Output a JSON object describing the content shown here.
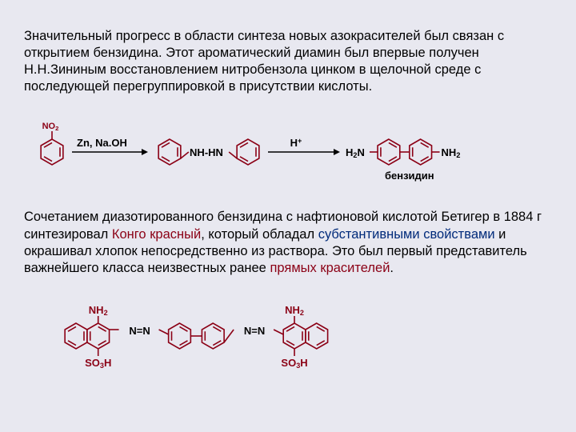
{
  "paragraph1": {
    "text": "Значительный прогресс в области синтеза новых азокрасителей был связан с открытием бензидина. Этот ароматический диамин был впервые получен Н.Н.Зининым восстановлением нитробензола цинком в щелочной среде с последующей перегруппировкой в присутствии кислоты."
  },
  "paragraph2": {
    "pre": "Сочетанием диазотированного бензидина с нафтионовой кислотой Бетигер в 1884 г синтезировал ",
    "kongo": "Конго красный",
    "mid1": ", который обладал ",
    "subst": "субстантивными свойствами",
    "mid2": " и окрашивал хлопок непосредственно из раствора. Это был первый представитель важнейшего класса неизвестных ранее ",
    "direct": "прямых красителей",
    "end": "."
  },
  "scheme1": {
    "labels": {
      "no2": "NO",
      "no2_sub": "2",
      "reagent1": "Zn, Na.OH",
      "hydrazo": "NH-HN",
      "reagent2_top": "+",
      "reagent2": "H",
      "h2n": "H",
      "h2n_sub": "2",
      "h2n_end": "N",
      "nh2": "NH",
      "nh2_sub": "2",
      "product_name": "бензидин"
    },
    "colors": {
      "structure": "#8b0015",
      "text": "#000"
    },
    "stroke_width": 1.6
  },
  "scheme2": {
    "labels": {
      "nh2": "NH",
      "nh2_sub": "2",
      "azo": "N=N",
      "so3h": "SO",
      "so3h_sub": "3",
      "so3h_end": "H"
    },
    "colors": {
      "structure": "#8b0015",
      "text": "#000"
    },
    "stroke_width": 1.6
  }
}
